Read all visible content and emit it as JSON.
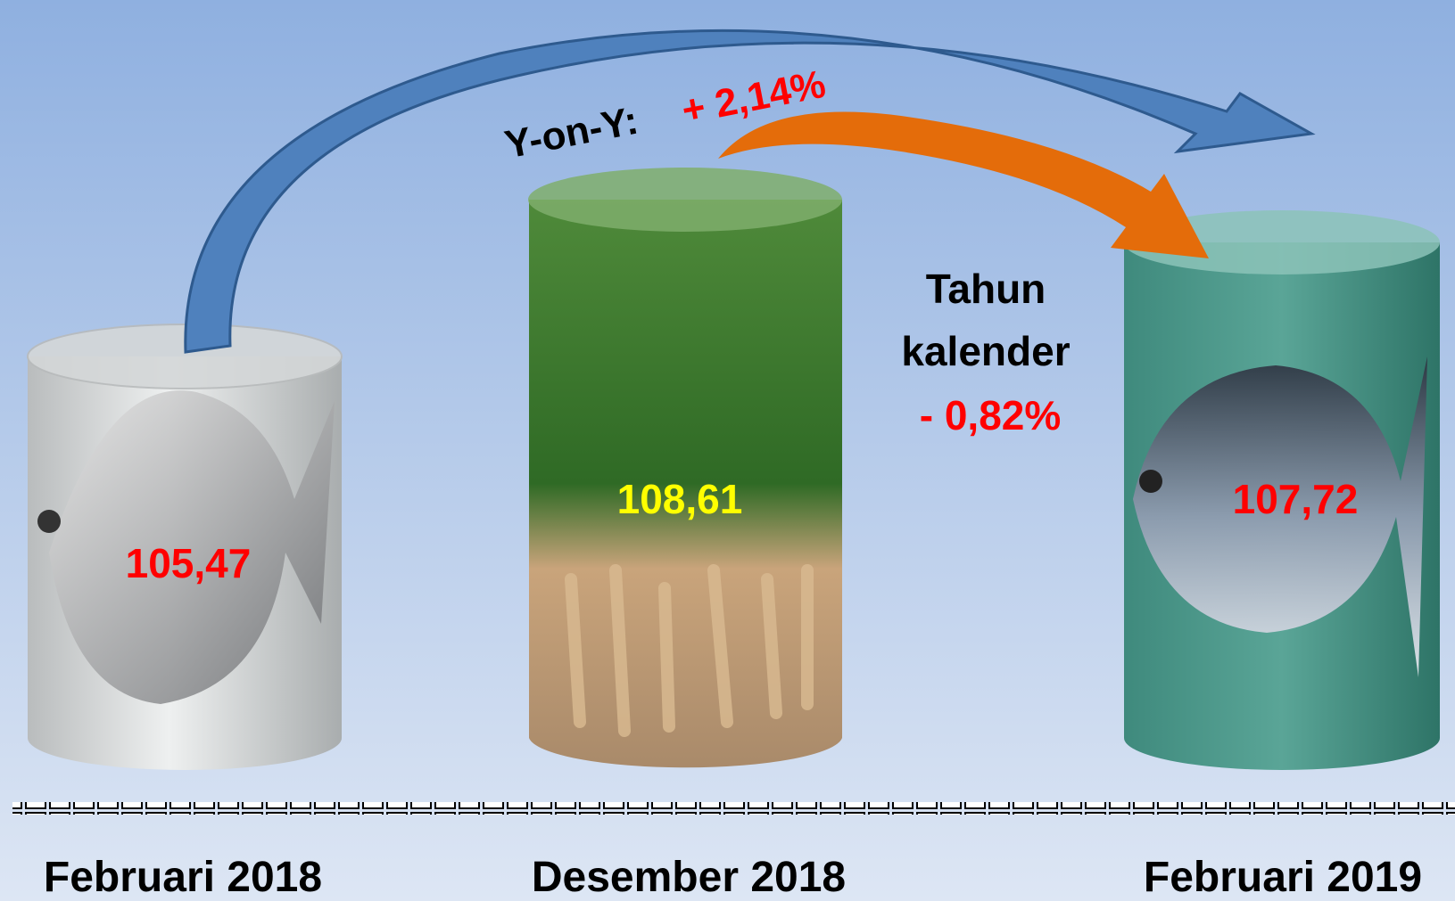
{
  "periods": [
    {
      "label": "Februari 2018",
      "value": "105,47"
    },
    {
      "label": "Desember 2018",
      "value": "108,61"
    },
    {
      "label": "Februari 2019",
      "value": "107,72"
    }
  ],
  "yoy": {
    "label": "Y-on-Y:",
    "change": "+ 2,14%"
  },
  "calendar": {
    "label_lines": [
      "Tahun",
      "kalender"
    ],
    "change": "- 0,82%"
  }
}
